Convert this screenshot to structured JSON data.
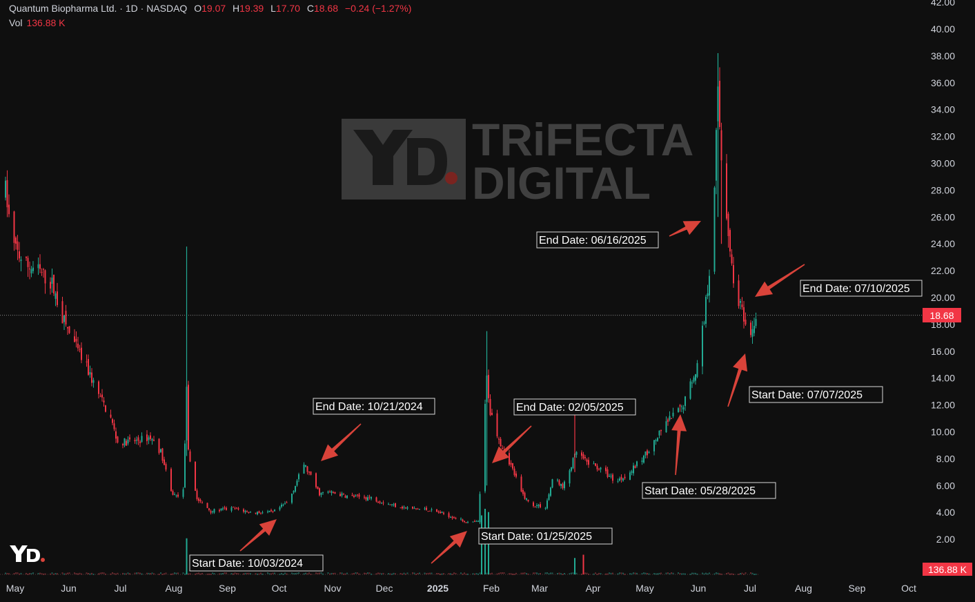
{
  "legend": {
    "symbol": "Quantum Biopharma Ltd. · 1D · NASDAQ",
    "open_label": "O",
    "open": "19.07",
    "high_label": "H",
    "high": "19.39",
    "low_label": "L",
    "low": "17.70",
    "close_label": "C",
    "close": "18.68",
    "change": "−0.24 (−1.27%)",
    "vol_label": "Vol",
    "vol_value": "136.88 K"
  },
  "price_tag": "18.68",
  "volume_tag": "136.88 K",
  "watermark": {
    "line1": "TRiFECTA",
    "line2": "DIGITAL"
  },
  "colors": {
    "up": "#22ab94",
    "down": "#f23645",
    "arrow": "#d9433a",
    "background": "#0f0f0f",
    "text": "#d1d4dc",
    "watermark": "#404040"
  },
  "chart_data": {
    "type": "candlestick",
    "ylim": [
      0,
      42
    ],
    "y_ticks": [
      "2.00",
      "4.00",
      "6.00",
      "8.00",
      "10.00",
      "12.00",
      "14.00",
      "16.00",
      "18.00",
      "20.00",
      "22.00",
      "24.00",
      "26.00",
      "28.00",
      "30.00",
      "32.00",
      "34.00",
      "36.00",
      "38.00",
      "40.00",
      "42.00"
    ],
    "x_ticks": [
      "May",
      "Jun",
      "Jul",
      "Aug",
      "Sep",
      "Oct",
      "Nov",
      "Dec",
      "2025",
      "Feb",
      "Mar",
      "Apr",
      "May",
      "Jun",
      "Jul",
      "Aug",
      "Sep",
      "Oct"
    ],
    "x_tick_dates": [
      "2024-05-01",
      "2024-06-01",
      "2024-07-01",
      "2024-08-01",
      "2024-09-01",
      "2024-10-01",
      "2024-11-01",
      "2024-12-01",
      "2025-01-01",
      "2025-02-01",
      "2025-03-01",
      "2025-04-01",
      "2025-05-01",
      "2025-06-01",
      "2025-07-01",
      "2025-08-01",
      "2025-09-01",
      "2025-10-01"
    ],
    "last_price": 18.68,
    "series_points": [
      [
        "2024-05-01",
        28.0
      ],
      [
        "2024-05-05",
        24.0
      ],
      [
        "2024-05-12",
        22.5
      ],
      [
        "2024-05-20",
        22.0
      ],
      [
        "2024-05-28",
        21.0
      ],
      [
        "2024-06-03",
        18.5
      ],
      [
        "2024-06-10",
        16.5
      ],
      [
        "2024-06-18",
        14.5
      ],
      [
        "2024-06-25",
        12.5
      ],
      [
        "2024-07-01",
        11.0
      ],
      [
        "2024-07-05",
        9.2
      ],
      [
        "2024-07-15",
        9.3
      ],
      [
        "2024-07-24",
        9.6
      ],
      [
        "2024-07-30",
        8.5
      ],
      [
        "2024-08-05",
        5.5
      ],
      [
        "2024-08-08",
        5.2
      ],
      [
        "2024-08-12",
        5.6
      ],
      [
        "2024-08-14",
        13.0
      ],
      [
        "2024-08-15",
        8.5
      ],
      [
        "2024-08-20",
        5.0
      ],
      [
        "2024-08-28",
        4.1
      ],
      [
        "2024-09-10",
        4.3
      ],
      [
        "2024-09-20",
        4.0
      ],
      [
        "2024-10-03",
        4.0
      ],
      [
        "2024-10-12",
        4.8
      ],
      [
        "2024-10-21",
        7.6
      ],
      [
        "2024-10-30",
        5.4
      ],
      [
        "2024-11-05",
        5.5
      ],
      [
        "2024-11-15",
        5.2
      ],
      [
        "2024-11-28",
        5.1
      ],
      [
        "2024-12-10",
        4.6
      ],
      [
        "2024-12-20",
        4.3
      ],
      [
        "2025-01-01",
        4.2
      ],
      [
        "2025-01-10",
        3.9
      ],
      [
        "2025-01-25",
        3.2
      ],
      [
        "2025-01-30",
        3.3
      ],
      [
        "2025-02-01",
        7.5
      ],
      [
        "2025-02-04",
        14.0
      ],
      [
        "2025-02-06",
        11.5
      ],
      [
        "2025-02-12",
        9.2
      ],
      [
        "2025-02-18",
        7.5
      ],
      [
        "2025-02-24",
        5.5
      ],
      [
        "2025-03-01",
        4.6
      ],
      [
        "2025-03-10",
        4.4
      ],
      [
        "2025-03-15",
        6.8
      ],
      [
        "2025-03-20",
        5.8
      ],
      [
        "2025-03-28",
        8.5
      ],
      [
        "2025-04-02",
        7.8
      ],
      [
        "2025-04-10",
        7.3
      ],
      [
        "2025-04-20",
        6.3
      ],
      [
        "2025-04-28",
        7.0
      ],
      [
        "2025-05-05",
        8.0
      ],
      [
        "2025-05-12",
        9.2
      ],
      [
        "2025-05-20",
        10.8
      ],
      [
        "2025-05-28",
        11.8
      ],
      [
        "2025-06-02",
        13.5
      ],
      [
        "2025-06-06",
        15.0
      ],
      [
        "2025-06-10",
        18.5
      ],
      [
        "2025-06-13",
        22.0
      ],
      [
        "2025-06-16",
        29.0
      ],
      [
        "2025-06-18",
        35.0
      ],
      [
        "2025-06-20",
        30.5
      ],
      [
        "2025-06-24",
        25.0
      ],
      [
        "2025-06-27",
        21.0
      ],
      [
        "2025-07-01",
        19.5
      ],
      [
        "2025-07-04",
        17.5
      ],
      [
        "2025-07-07",
        16.8
      ],
      [
        "2025-07-09",
        18.2
      ],
      [
        "2025-07-10",
        18.68
      ]
    ],
    "spikes": [
      {
        "date": "2024-08-14",
        "high": 23.8,
        "low": 8.2,
        "up": true
      },
      {
        "date": "2025-02-04",
        "high": 17.5,
        "low": 6.0,
        "up": true
      },
      {
        "date": "2025-03-27",
        "high": 12.4,
        "low": 7.0,
        "up": false
      },
      {
        "date": "2025-06-18",
        "high": 38.2,
        "low": 26.0,
        "up": true
      },
      {
        "date": "2025-06-20",
        "high": 32.5,
        "low": 24.0,
        "up": false
      }
    ],
    "volume_spikes": [
      {
        "date": "2024-08-14",
        "size": 0.55,
        "up": true
      },
      {
        "date": "2025-02-01",
        "size": 0.9,
        "up": true
      },
      {
        "date": "2025-02-03",
        "size": 1.0,
        "up": true
      },
      {
        "date": "2025-02-05",
        "size": 0.95,
        "up": true
      },
      {
        "date": "2025-03-27",
        "size": 0.25,
        "up": true
      },
      {
        "date": "2025-04-01",
        "size": 0.3,
        "up": false
      }
    ],
    "annotations": [
      {
        "text": "Start Date: 10/03/2024",
        "date": "2024-10-03",
        "price": 4.0
      },
      {
        "text": "End Date: 10/21/2024",
        "date": "2024-10-21",
        "price": 7.6
      },
      {
        "text": "Start Date: 01/25/2025",
        "date": "2025-01-25",
        "price": 3.2
      },
      {
        "text": "End Date: 02/05/2025",
        "date": "2025-02-05",
        "price": 8.2
      },
      {
        "text": "Start Date: 05/28/2025",
        "date": "2025-05-28",
        "price": 11.8
      },
      {
        "text": "End Date: 06/16/2025",
        "date": "2025-06-16",
        "price": 25.8
      },
      {
        "text": "Start Date: 07/07/2025",
        "date": "2025-07-07",
        "price": 16.2
      },
      {
        "text": "End Date: 07/10/2025",
        "date": "2025-07-10",
        "price": 19.5
      }
    ]
  }
}
